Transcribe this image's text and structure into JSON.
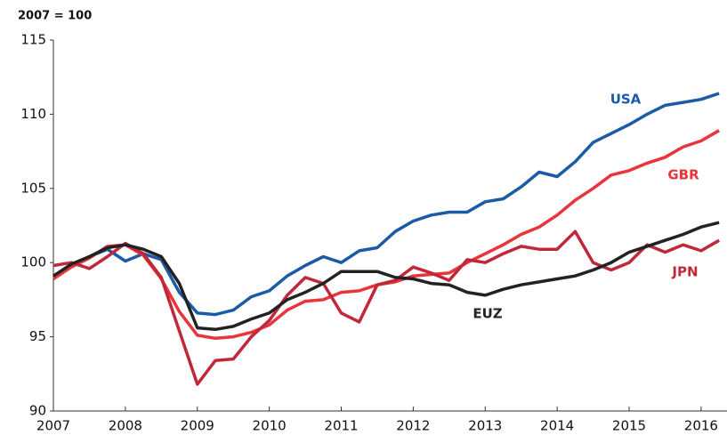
{
  "chart_data": {
    "type": "line",
    "y_label": "2007 = 100",
    "x": [
      2007,
      2007.25,
      2007.5,
      2007.75,
      2008,
      2008.25,
      2008.5,
      2008.75,
      2009,
      2009.25,
      2009.5,
      2009.75,
      2010,
      2010.25,
      2010.5,
      2010.75,
      2011,
      2011.25,
      2011.5,
      2011.75,
      2012,
      2012.25,
      2012.5,
      2012.75,
      2013,
      2013.25,
      2013.5,
      2013.75,
      2014,
      2014.25,
      2014.5,
      2014.75,
      2015,
      2015.25,
      2015.5,
      2015.75,
      2016,
      2016.25
    ],
    "series": [
      {
        "name": "USA",
        "color": "#1a5aa6",
        "values": [
          99.0,
          99.8,
          100.4,
          100.9,
          100.1,
          100.6,
          100.2,
          98.0,
          96.6,
          96.5,
          96.8,
          97.7,
          98.1,
          99.1,
          99.8,
          100.4,
          100.0,
          100.8,
          101.0,
          102.1,
          102.8,
          103.2,
          103.4,
          103.4,
          104.1,
          104.3,
          105.1,
          106.1,
          105.8,
          106.8,
          108.1,
          108.7,
          109.3,
          110.0,
          110.6,
          110.8,
          111.0,
          111.4
        ]
      },
      {
        "name": "GBR",
        "color": "#e8343b",
        "values": [
          98.9,
          99.7,
          100.3,
          101.1,
          101.2,
          100.5,
          98.9,
          96.7,
          95.1,
          94.9,
          95.0,
          95.3,
          95.8,
          96.8,
          97.4,
          97.5,
          98.0,
          98.1,
          98.5,
          98.7,
          99.1,
          99.2,
          99.3,
          100.0,
          100.6,
          101.2,
          101.9,
          102.4,
          103.2,
          104.2,
          105.0,
          105.9,
          106.2,
          106.7,
          107.1,
          107.8,
          108.2,
          108.9
        ]
      },
      {
        "name": "JPN",
        "color": "#c0283a",
        "values": [
          99.8,
          100.0,
          99.6,
          100.4,
          101.3,
          100.6,
          99.0,
          95.4,
          91.8,
          93.4,
          93.5,
          95.0,
          96.1,
          97.8,
          99.0,
          98.6,
          96.6,
          96.0,
          98.5,
          98.8,
          99.7,
          99.3,
          98.8,
          100.2,
          100.0,
          100.6,
          101.1,
          100.9,
          100.9,
          102.1,
          100.0,
          99.5,
          100.0,
          101.2,
          100.7,
          101.2,
          100.8,
          101.5
        ]
      },
      {
        "name": "EUZ",
        "color": "#222222",
        "values": [
          99.1,
          99.9,
          100.4,
          101.0,
          101.2,
          100.9,
          100.4,
          98.6,
          95.6,
          95.5,
          95.7,
          96.2,
          96.6,
          97.5,
          98.0,
          98.6,
          99.4,
          99.4,
          99.4,
          99.0,
          98.9,
          98.6,
          98.5,
          98.0,
          97.8,
          98.2,
          98.5,
          98.7,
          98.9,
          99.1,
          99.5,
          100.0,
          100.7,
          101.1,
          101.5,
          101.9,
          102.4,
          102.7
        ]
      }
    ],
    "xlim": [
      2007,
      2016.36
    ],
    "xticks": [
      2007,
      2008,
      2009,
      2010,
      2011,
      2012,
      2013,
      2014,
      2015,
      2016
    ],
    "ylim": [
      90,
      115
    ],
    "yticks": [
      90,
      95,
      100,
      105,
      110,
      115
    ]
  }
}
